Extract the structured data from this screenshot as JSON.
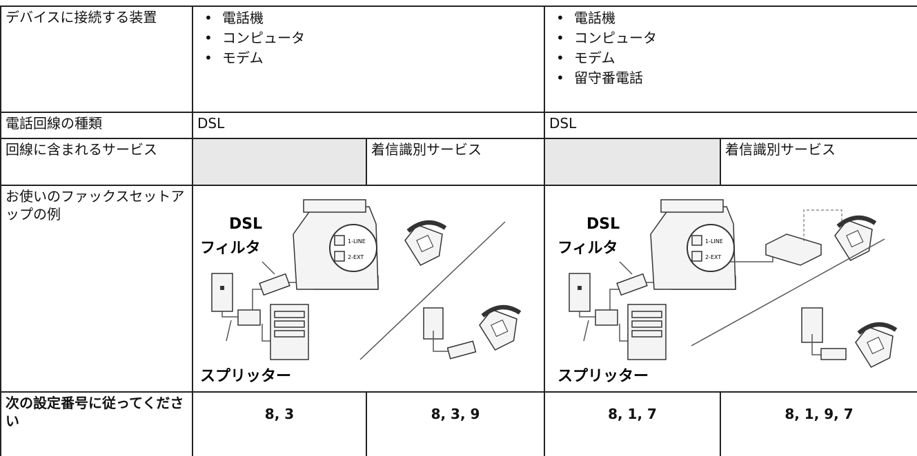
{
  "table": {
    "rows": {
      "devices": {
        "label": "デバイスに接続する装置",
        "left": [
          "電話機",
          "コンピュータ",
          "モデム"
        ],
        "right": [
          "電話機",
          "コンピュータ",
          "モデム",
          "留守番電話"
        ]
      },
      "line_type": {
        "label": "電話回線の種類",
        "left": "DSL",
        "right": "DSL"
      },
      "services": {
        "label": "回線に含まれるサービス",
        "left": "着信識別サービス",
        "right": "着信識別サービス"
      },
      "example": {
        "label": "お使いのファックスセットアップの例",
        "left": {
          "filter_title": "DSL",
          "filter": "フィルタ",
          "splitter": "スプリッター",
          "port1": "1-LINE",
          "port2": "2-EXT"
        },
        "right": {
          "filter_title": "DSL",
          "filter": "フィルタ",
          "splitter": "スプリッター",
          "port1": "1-LINE",
          "port2": "2-EXT"
        }
      },
      "settings": {
        "label": "次の設定番号に従ってください",
        "values": [
          "8, 3",
          "8, 3, 9",
          "8, 1, 7",
          "8, 1, 9, 7"
        ]
      }
    }
  }
}
